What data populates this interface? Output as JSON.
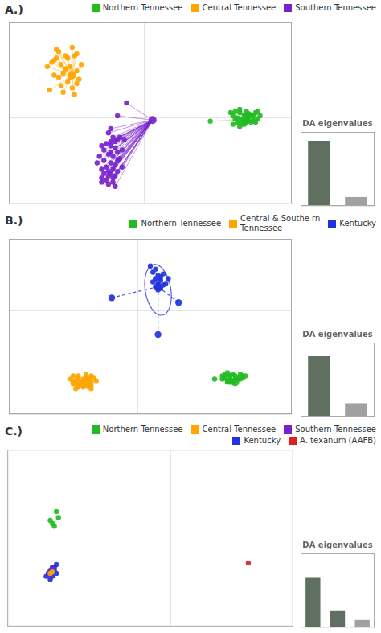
{
  "chart_data": [
    {
      "type": "scatter",
      "title": "A.)",
      "legend": "upper right",
      "grid": true,
      "tick_labels": false,
      "xlim": [
        -6.0,
        6.5
      ],
      "ylim": [
        -4.0,
        4.5
      ],
      "xticks": [
        0
      ],
      "yticks": [
        0
      ],
      "series": [
        {
          "name": "Northern Tennessee",
          "color": "#22bb22",
          "center": [
            4.5,
            -0.1
          ],
          "points": [
            [
              2.9,
              -0.15
            ],
            [
              3.8,
              0.25
            ],
            [
              3.9,
              0.1
            ],
            [
              4.0,
              0.3
            ],
            [
              4.1,
              0.0
            ],
            [
              4.2,
              0.25
            ],
            [
              4.3,
              -0.1
            ],
            [
              4.4,
              0.15
            ],
            [
              4.5,
              0.3
            ],
            [
              4.6,
              0.05
            ],
            [
              4.7,
              -0.2
            ],
            [
              4.8,
              0.1
            ],
            [
              4.9,
              0.25
            ],
            [
              5.0,
              -0.05
            ],
            [
              4.3,
              -0.3
            ],
            [
              4.1,
              -0.2
            ],
            [
              3.9,
              -0.3
            ],
            [
              4.5,
              -0.2
            ],
            [
              4.6,
              0.2
            ],
            [
              4.4,
              -0.3
            ],
            [
              4.2,
              0.4
            ],
            [
              4.0,
              -0.05
            ],
            [
              4.7,
              0.15
            ],
            [
              4.8,
              -0.1
            ],
            [
              4.5,
              0.1
            ],
            [
              5.1,
              0.1
            ],
            [
              4.9,
              -0.2
            ],
            [
              5.0,
              0.3
            ],
            [
              4.2,
              -0.4
            ]
          ]
        },
        {
          "name": "Central Tennessee",
          "color": "#ffa500",
          "center": [
            -3.2,
            2.0
          ],
          "points": [
            [
              -3.8,
              3.1
            ],
            [
              -3.2,
              3.3
            ],
            [
              -3.0,
              3.0
            ],
            [
              -3.5,
              2.9
            ],
            [
              -3.9,
              2.8
            ],
            [
              -4.1,
              2.6
            ],
            [
              -3.7,
              2.5
            ],
            [
              -3.3,
              2.4
            ],
            [
              -3.0,
              2.2
            ],
            [
              -3.6,
              2.1
            ],
            [
              -4.0,
              2.0
            ],
            [
              -3.8,
              1.9
            ],
            [
              -3.4,
              1.7
            ],
            [
              -3.0,
              1.6
            ],
            [
              -3.7,
              1.5
            ],
            [
              -3.2,
              1.4
            ],
            [
              -4.2,
              1.3
            ],
            [
              -3.6,
              1.2
            ],
            [
              -3.1,
              2.9
            ],
            [
              -3.9,
              3.2
            ],
            [
              -4.0,
              2.7
            ],
            [
              -3.5,
              2.3
            ],
            [
              -3.3,
              1.9
            ],
            [
              -2.9,
              1.8
            ],
            [
              -2.8,
              2.5
            ],
            [
              -3.4,
              2.8
            ],
            [
              -4.3,
              2.4
            ],
            [
              -3.1,
              1.1
            ]
          ]
        },
        {
          "name": "Southern Tennessee",
          "color": "#7722cc",
          "center": [
            0.35,
            -0.1
          ],
          "points": [
            [
              -0.8,
              0.7
            ],
            [
              -1.2,
              0.1
            ],
            [
              -1.5,
              -0.5
            ],
            [
              -1.6,
              -0.7
            ],
            [
              -1.4,
              -0.9
            ],
            [
              -1.2,
              -1.0
            ],
            [
              -1.5,
              -1.1
            ],
            [
              -1.7,
              -1.2
            ],
            [
              -1.9,
              -1.3
            ],
            [
              -1.3,
              -1.4
            ],
            [
              -1.8,
              -1.5
            ],
            [
              -1.5,
              -1.6
            ],
            [
              -1.2,
              -1.6
            ],
            [
              -1.6,
              -1.7
            ],
            [
              -2.0,
              -1.8
            ],
            [
              -1.4,
              -1.8
            ],
            [
              -1.1,
              -1.9
            ],
            [
              -1.8,
              -2.0
            ],
            [
              -1.5,
              -2.1
            ],
            [
              -1.3,
              -2.2
            ],
            [
              -1.7,
              -2.3
            ],
            [
              -1.9,
              -2.4
            ],
            [
              -1.4,
              -2.4
            ],
            [
              -1.6,
              -2.5
            ],
            [
              -1.2,
              -2.5
            ],
            [
              -1.5,
              -2.6
            ],
            [
              -1.8,
              -2.6
            ],
            [
              -1.3,
              -2.7
            ],
            [
              -1.6,
              -2.7
            ],
            [
              -1.9,
              -2.8
            ],
            [
              -1.4,
              -2.8
            ],
            [
              -1.5,
              -1.3
            ],
            [
              -1.3,
              -1.1
            ],
            [
              -1.1,
              -0.9
            ],
            [
              -0.9,
              -1.0
            ],
            [
              -1.0,
              -1.5
            ],
            [
              -1.2,
              -2.0
            ],
            [
              -1.0,
              -2.3
            ],
            [
              -2.1,
              -2.1
            ],
            [
              -1.7,
              -2.9
            ],
            [
              -1.4,
              -3.0
            ],
            [
              -1.6,
              -3.1
            ],
            [
              -1.9,
              -3.0
            ],
            [
              -1.3,
              -3.2
            ]
          ]
        }
      ]
    },
    {
      "type": "bar",
      "title": "DA eigenvalues",
      "categories": [
        null,
        null
      ],
      "values": [
        0.88,
        0.12
      ],
      "colors": [
        "#607060",
        "#a0a0a0"
      ],
      "ylim": [
        0,
        1
      ],
      "tick_labels": false,
      "grid": false
    },
    {
      "type": "scatter",
      "title": "B.)",
      "legend": "upper right",
      "grid": true,
      "tick_labels": false,
      "xlim": [
        -5.0,
        6.0
      ],
      "ylim": [
        -6.5,
        4.5
      ],
      "xticks": [
        0
      ],
      "yticks": [
        0
      ],
      "series": [
        {
          "name": "Northern Tennessee",
          "color": "#22bb22",
          "center": [
            3.8,
            -4.5
          ],
          "points": [
            [
              3.0,
              -4.3
            ],
            [
              3.3,
              -4.1
            ],
            [
              3.4,
              -4.0
            ],
            [
              3.5,
              -3.9
            ],
            [
              3.6,
              -4.1
            ],
            [
              3.7,
              -4.0
            ],
            [
              3.8,
              -4.1
            ],
            [
              3.9,
              -4.2
            ],
            [
              4.0,
              -4.0
            ],
            [
              4.1,
              -4.1
            ],
            [
              3.6,
              -4.3
            ],
            [
              3.4,
              -4.2
            ],
            [
              3.8,
              -4.3
            ],
            [
              3.7,
              -4.4
            ],
            [
              3.5,
              -4.4
            ],
            [
              3.9,
              -4.3
            ],
            [
              4.0,
              -4.3
            ],
            [
              3.6,
              -4.5
            ],
            [
              3.3,
              -4.3
            ],
            [
              4.1,
              -4.2
            ],
            [
              3.7,
              -4.5
            ],
            [
              4.2,
              -4.1
            ],
            [
              3.5,
              -4.5
            ]
          ]
        },
        {
          "name": "Central & Southe rn\nTennessee",
          "color": "#ffa500",
          "center": [
            -2.0,
            -4.5
          ],
          "points": [
            [
              -2.5,
              -4.1
            ],
            [
              -2.3,
              -4.2
            ],
            [
              -2.0,
              -4.0
            ],
            [
              -1.8,
              -4.1
            ],
            [
              -2.1,
              -4.3
            ],
            [
              -2.4,
              -4.4
            ],
            [
              -1.9,
              -4.4
            ],
            [
              -2.2,
              -4.5
            ],
            [
              -2.5,
              -4.6
            ],
            [
              -2.0,
              -4.6
            ],
            [
              -2.3,
              -4.7
            ],
            [
              -1.8,
              -4.7
            ],
            [
              -2.1,
              -4.8
            ],
            [
              -2.4,
              -4.9
            ],
            [
              -1.9,
              -4.8
            ],
            [
              -2.2,
              -4.5
            ],
            [
              -2.6,
              -4.3
            ],
            [
              -1.7,
              -4.2
            ],
            [
              -2.0,
              -4.5
            ],
            [
              -2.3,
              -4.1
            ],
            [
              -2.1,
              -4.7
            ],
            [
              -1.8,
              -4.5
            ],
            [
              -2.5,
              -4.5
            ],
            [
              -2.0,
              -4.2
            ],
            [
              -2.2,
              -4.6
            ],
            [
              -1.9,
              -4.3
            ],
            [
              -2.3,
              -4.8
            ],
            [
              -1.6,
              -4.4
            ],
            [
              -2.4,
              -4.6
            ],
            [
              -1.8,
              -4.9
            ]
          ]
        },
        {
          "name": "Kentucky",
          "color": "#2233dd",
          "center": [
            0.8,
            1.5
          ],
          "ellipse": {
            "cx": 0.8,
            "cy": 1.3,
            "width": 1.0,
            "height": 3.2,
            "angle": 5
          },
          "outliers": [
            [
              -1.0,
              0.8
            ],
            [
              1.6,
              0.5
            ],
            [
              0.8,
              -1.5
            ]
          ],
          "points": [
            [
              0.5,
              2.8
            ],
            [
              0.7,
              2.6
            ],
            [
              0.6,
              2.4
            ],
            [
              0.8,
              2.2
            ],
            [
              0.9,
              2.1
            ],
            [
              1.0,
              2.3
            ],
            [
              0.7,
              2.0
            ],
            [
              0.9,
              1.9
            ],
            [
              0.8,
              1.7
            ],
            [
              0.6,
              1.8
            ],
            [
              1.0,
              1.6
            ],
            [
              0.7,
              1.5
            ],
            [
              0.9,
              1.4
            ],
            [
              0.8,
              1.3
            ],
            [
              1.2,
              2.0
            ],
            [
              1.1,
              1.7
            ]
          ]
        }
      ]
    },
    {
      "type": "bar",
      "title": "DA eigenvalues",
      "categories": [
        null,
        null
      ],
      "values": [
        0.82,
        0.18
      ],
      "colors": [
        "#607060",
        "#a0a0a0"
      ],
      "ylim": [
        0,
        1
      ],
      "tick_labels": false,
      "grid": false
    },
    {
      "type": "scatter",
      "title": "C.)",
      "legend": "upper right",
      "grid": true,
      "tick_labels": false,
      "xlim": [
        -8.0,
        6.0
      ],
      "ylim": [
        -2.5,
        3.5
      ],
      "xticks": [
        0
      ],
      "yticks": [
        0
      ],
      "series": [
        {
          "name": "Northern Tennessee",
          "color": "#22bb22",
          "points": [
            [
              -5.5,
              1.2
            ],
            [
              -5.8,
              1.0
            ],
            [
              -5.6,
              1.4
            ],
            [
              -5.9,
              1.1
            ],
            [
              -5.7,
              0.9
            ]
          ]
        },
        {
          "name": "Central Tennessee",
          "color": "#ffa500",
          "points": [
            [
              -5.8,
              -0.65
            ],
            [
              -5.9,
              -0.7
            ]
          ]
        },
        {
          "name": "Southern Tennessee",
          "color": "#7722cc",
          "points": [
            [
              -5.85,
              -0.65
            ],
            [
              -5.75,
              -0.55
            ],
            [
              -5.95,
              -0.75
            ]
          ]
        },
        {
          "name": "Kentucky",
          "color": "#2233dd",
          "points": [
            [
              -5.8,
              -0.5
            ],
            [
              -5.6,
              -0.4
            ],
            [
              -5.9,
              -0.6
            ],
            [
              -5.7,
              -0.5
            ],
            [
              -6.0,
              -0.7
            ],
            [
              -5.8,
              -0.8
            ],
            [
              -5.6,
              -0.7
            ],
            [
              -5.9,
              -0.9
            ],
            [
              -5.7,
              -0.6
            ],
            [
              -6.1,
              -0.8
            ]
          ]
        },
        {
          "name": "A. texanum (AAFB)",
          "color": "#dd2222",
          "points": [
            [
              3.8,
              -0.35
            ]
          ]
        }
      ]
    },
    {
      "type": "bar",
      "title": "DA eigenvalues",
      "categories": [
        null,
        null,
        null
      ],
      "values": [
        0.68,
        0.22,
        0.1
      ],
      "colors": [
        "#607060",
        "#607060",
        "#a0a0a0"
      ],
      "ylim": [
        0,
        1
      ],
      "tick_labels": false,
      "grid": false
    }
  ]
}
